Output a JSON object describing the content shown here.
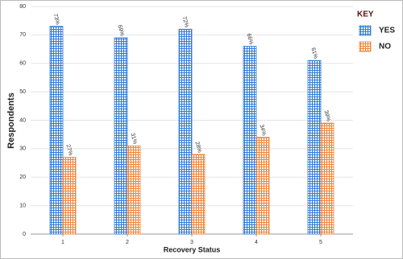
{
  "chart_data": {
    "type": "bar",
    "categories": [
      "1",
      "2",
      "3",
      "4",
      "5"
    ],
    "series": [
      {
        "name": "YES",
        "color": "#2f7ad6",
        "values": [
          73,
          69,
          72,
          66,
          61
        ],
        "value_labels": [
          "73%",
          "69%",
          "72%",
          "66%",
          "61%"
        ]
      },
      {
        "name": "NO",
        "color": "#ee843a",
        "values": [
          27,
          31,
          28,
          34,
          39
        ],
        "value_labels": [
          "27%",
          "31%",
          "28%",
          "34%",
          "39%"
        ]
      }
    ],
    "x_label": "Recovery Status",
    "y_label": "Respondents",
    "legend_title": "KEY",
    "legend": "top-right",
    "ylim": [
      0,
      80
    ],
    "yticks": [
      0,
      10,
      20,
      30,
      40,
      50,
      60,
      70,
      80
    ],
    "grid": true
  }
}
